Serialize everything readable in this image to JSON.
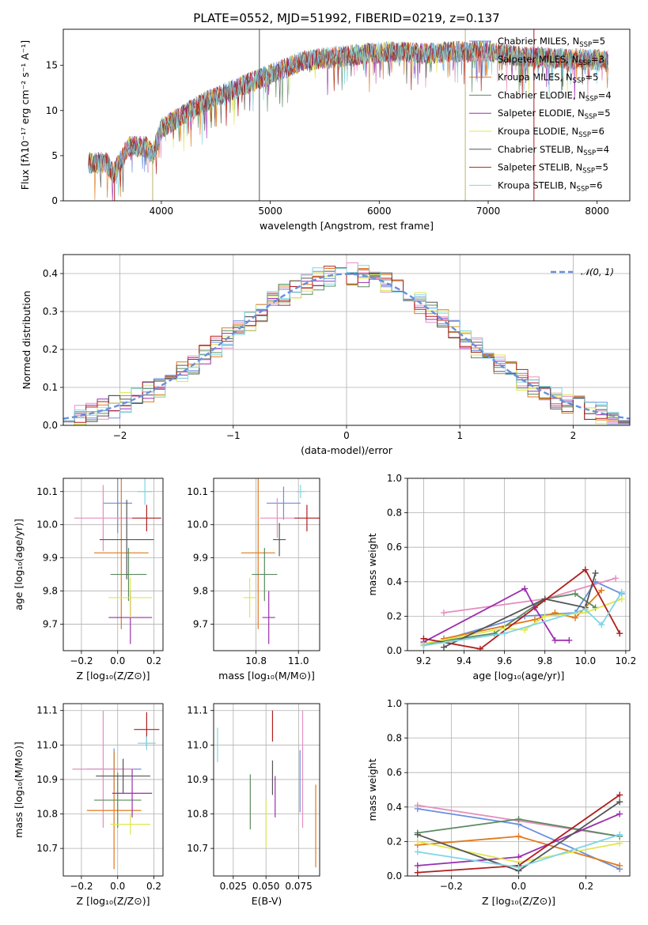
{
  "figure": {
    "title": "PLATE=0552, MJD=51992, FIBERID=0219, z=0.137"
  },
  "colors": {
    "Chabrier MILES": "#6a8fdc",
    "Salpeter MILES": "#e58fbf",
    "Kroupa MILES": "#e07a1c",
    "Chabrier ELODIE": "#5c8a60",
    "Salpeter ELODIE": "#9b2fae",
    "Kroupa ELODIE": "#dde84e",
    "Chabrier STELIB": "#555555",
    "Salpeter STELIB": "#b01e1e",
    "Kroupa STELIB": "#7fd6e4"
  },
  "chart_data": [
    {
      "id": "spectrum",
      "type": "line",
      "xlabel": "wavelength [Angstrom, rest frame]",
      "ylabel": "Flux [fλ10⁻¹⁷ erg cm⁻² s⁻¹ A⁻¹]",
      "xlim": [
        3100,
        8300
      ],
      "ylim": [
        0,
        19
      ],
      "xticks": [
        "4000",
        "5000",
        "6000",
        "7000",
        "8000"
      ],
      "yticks": [
        "0",
        "5",
        "10",
        "15"
      ],
      "legend_position": "top-right",
      "legend": [
        {
          "label": "Chabrier MILES, N",
          "sub": "SSP",
          "eq": "=5",
          "color": "#6a8fdc"
        },
        {
          "label": "Salpeter MILES, N",
          "sub": "SSP",
          "eq": "=3",
          "color": "#e58fbf"
        },
        {
          "label": "Kroupa MILES, N",
          "sub": "SSP",
          "eq": "=5",
          "color": "#e07a1c"
        },
        {
          "label": "Chabrier ELODIE, N",
          "sub": "SSP",
          "eq": "=4",
          "color": "#5c8a60"
        },
        {
          "label": "Salpeter ELODIE, N",
          "sub": "SSP",
          "eq": "=5",
          "color": "#9b2fae"
        },
        {
          "label": "Kroupa ELODIE, N",
          "sub": "SSP",
          "eq": "=6",
          "color": "#dde84e"
        },
        {
          "label": "Chabrier STELIB, N",
          "sub": "SSP",
          "eq": "=4",
          "color": "#555555"
        },
        {
          "label": "Salpeter STELIB, N",
          "sub": "SSP",
          "eq": "=5",
          "color": "#b01e1e"
        },
        {
          "label": "Kroupa STELIB, N",
          "sub": "SSP",
          "eq": "=6",
          "color": "#7fd6e4"
        }
      ],
      "continuum_points": [
        [
          3330,
          4.2
        ],
        [
          3500,
          4.2
        ],
        [
          3560,
          3.0
        ],
        [
          3700,
          6.0
        ],
        [
          3860,
          6.0
        ],
        [
          3920,
          5.0
        ],
        [
          4000,
          8.0
        ],
        [
          4200,
          9.5
        ],
        [
          4400,
          11.0
        ],
        [
          4600,
          12.0
        ],
        [
          4700,
          12.5
        ],
        [
          4800,
          13.0
        ],
        [
          4900,
          13.5
        ],
        [
          5100,
          14.5
        ],
        [
          5300,
          15.5
        ],
        [
          5500,
          15.8
        ],
        [
          5800,
          16.2
        ],
        [
          6100,
          16.5
        ],
        [
          6400,
          16.3
        ],
        [
          6700,
          16.5
        ],
        [
          7000,
          16.5
        ],
        [
          7300,
          16.0
        ],
        [
          7600,
          15.8
        ],
        [
          8000,
          15.6
        ],
        [
          8100,
          15.5
        ]
      ],
      "spikes": [
        [
          4900,
          19.5
        ],
        [
          6790,
          19.5
        ],
        [
          7420,
          19.5
        ]
      ]
    },
    {
      "id": "residuals",
      "type": "histogram",
      "xlabel": "(data-model)/error",
      "ylabel": "Normed distribution",
      "xlim": [
        -2.5,
        2.5
      ],
      "ylim": [
        0,
        0.45
      ],
      "xticks": [
        "−2",
        "−1",
        "0",
        "1",
        "2"
      ],
      "yticks": [
        "0.0",
        "0.1",
        "0.2",
        "0.3",
        "0.4"
      ],
      "legend_position": "top-right",
      "legend": [
        {
          "label": "𝒩(0, 1)",
          "color": "#6a8fdc"
        }
      ],
      "bin_width": 0.1,
      "gaussian": {
        "mean": 0,
        "sigma": 1
      }
    },
    {
      "id": "age_vs_Z",
      "type": "scatter",
      "xlabel": "Z [log₁₀(Z/Z⊙)]",
      "ylabel": "age  [log₁₀(age/yr)]",
      "xlim": [
        -0.3,
        0.25
      ],
      "ylim": [
        9.62,
        10.14
      ],
      "xticks": [
        "−0.2",
        "0.0",
        "0.2"
      ],
      "yticks": [
        "9.7",
        "9.8",
        "9.9",
        "10.0",
        "10.1"
      ],
      "points": [
        {
          "series": "Chabrier MILES",
          "x": 0.0,
          "y": 10.065,
          "xerr": 0.08,
          "yerr": 0.09
        },
        {
          "series": "Salpeter MILES",
          "x": -0.08,
          "y": 10.02,
          "xerr": 0.16,
          "yerr": 0.1
        },
        {
          "series": "Kroupa MILES",
          "x": 0.02,
          "y": 9.915,
          "xerr": 0.15,
          "yerr": 0.23
        },
        {
          "series": "Chabrier ELODIE",
          "x": 0.06,
          "y": 9.85,
          "xerr": 0.1,
          "yerr": 0.08
        },
        {
          "series": "Salpeter ELODIE",
          "x": 0.07,
          "y": 9.72,
          "xerr": 0.12,
          "yerr": 0.08
        },
        {
          "series": "Kroupa ELODIE",
          "x": 0.07,
          "y": 9.78,
          "xerr": 0.12,
          "yerr": 0.06
        },
        {
          "series": "Chabrier STELIB",
          "x": 0.05,
          "y": 9.955,
          "xerr": 0.15,
          "yerr": 0.12
        },
        {
          "series": "Salpeter STELIB",
          "x": 0.16,
          "y": 10.02,
          "xerr": 0.08,
          "yerr": 0.04
        },
        {
          "series": "Kroupa STELIB",
          "x": 0.15,
          "y": 10.1,
          "xerr": 0.04,
          "yerr": 0.04
        }
      ]
    },
    {
      "id": "age_vs_mass",
      "type": "scatter",
      "xlabel": "mass [log₁₀(M/M⊙)]",
      "ylabel": "",
      "xlim": [
        10.6,
        11.1
      ],
      "ylim": [
        9.62,
        10.14
      ],
      "xticks": [
        "10.8",
        "11.0"
      ],
      "yticks": [
        "9.7",
        "9.8",
        "9.9",
        "10.0",
        "10.1"
      ],
      "points": [
        {
          "series": "Chabrier MILES",
          "x": 10.93,
          "y": 10.065,
          "xerr": 0.08,
          "yerr": 0.05
        },
        {
          "series": "Salpeter MILES",
          "x": 10.9,
          "y": 10.02,
          "xerr": 0.08,
          "yerr": 0.06
        },
        {
          "series": "Kroupa MILES",
          "x": 10.81,
          "y": 9.915,
          "xerr": 0.08,
          "yerr": 0.23
        },
        {
          "series": "Chabrier ELODIE",
          "x": 10.84,
          "y": 9.85,
          "xerr": 0.06,
          "yerr": 0.08
        },
        {
          "series": "Salpeter ELODIE",
          "x": 10.86,
          "y": 9.72,
          "xerr": 0.03,
          "yerr": 0.08
        },
        {
          "series": "Kroupa ELODIE",
          "x": 10.77,
          "y": 9.78,
          "xerr": 0.03,
          "yerr": 0.06
        },
        {
          "series": "Chabrier STELIB",
          "x": 10.91,
          "y": 9.955,
          "xerr": 0.03,
          "yerr": 0.05
        },
        {
          "series": "Salpeter STELIB",
          "x": 11.04,
          "y": 10.02,
          "xerr": 0.06,
          "yerr": 0.04
        },
        {
          "series": "Kroupa STELIB",
          "x": 11.01,
          "y": 10.1,
          "xerr": 0.02,
          "yerr": 0.02
        }
      ]
    },
    {
      "id": "massweight_vs_age",
      "type": "line",
      "xlabel": "age  [log₁₀(age/yr)]",
      "ylabel": "mass weight",
      "xlim": [
        9.12,
        10.22
      ],
      "ylim": [
        0,
        1
      ],
      "xticks": [
        "9.2",
        "9.4",
        "9.6",
        "9.8",
        "10.0",
        "10.2"
      ],
      "yticks": [
        "0.0",
        "0.2",
        "0.4",
        "0.6",
        "0.8",
        "1.0"
      ],
      "series": [
        {
          "name": "Chabrier MILES",
          "points": [
            [
              9.2,
              0.03
            ],
            [
              9.7,
              0.2
            ],
            [
              9.95,
              0.22
            ],
            [
              10.05,
              0.4
            ],
            [
              10.18,
              0.33
            ]
          ]
        },
        {
          "name": "Salpeter MILES",
          "points": [
            [
              9.3,
              0.22
            ],
            [
              9.8,
              0.3
            ],
            [
              10.15,
              0.42
            ]
          ]
        },
        {
          "name": "Kroupa MILES",
          "points": [
            [
              9.3,
              0.07
            ],
            [
              9.75,
              0.18
            ],
            [
              9.85,
              0.22
            ],
            [
              9.95,
              0.19
            ],
            [
              10.08,
              0.35
            ]
          ]
        },
        {
          "name": "Chabrier ELODIE",
          "points": [
            [
              9.2,
              0.04
            ],
            [
              9.55,
              0.1
            ],
            [
              9.8,
              0.3
            ],
            [
              9.95,
              0.33
            ],
            [
              10.05,
              0.25
            ]
          ]
        },
        {
          "name": "Salpeter ELODIE",
          "points": [
            [
              9.2,
              0.05
            ],
            [
              9.7,
              0.36
            ],
            [
              9.75,
              0.25
            ],
            [
              9.85,
              0.06
            ],
            [
              9.92,
              0.06
            ]
          ]
        },
        {
          "name": "Kroupa ELODIE",
          "points": [
            [
              9.2,
              0.04
            ],
            [
              9.6,
              0.13
            ],
            [
              9.7,
              0.12
            ],
            [
              9.8,
              0.2
            ],
            [
              10.0,
              0.22
            ],
            [
              10.18,
              0.3
            ]
          ]
        },
        {
          "name": "Chabrier STELIB",
          "points": [
            [
              9.3,
              0.02
            ],
            [
              9.8,
              0.3
            ],
            [
              10.0,
              0.25
            ],
            [
              10.05,
              0.45
            ]
          ]
        },
        {
          "name": "Salpeter STELIB",
          "points": [
            [
              9.2,
              0.07
            ],
            [
              9.48,
              0.01
            ],
            [
              10.0,
              0.47
            ],
            [
              10.17,
              0.1
            ]
          ]
        },
        {
          "name": "Kroupa STELIB",
          "points": [
            [
              9.2,
              0.03
            ],
            [
              9.6,
              0.1
            ],
            [
              10.0,
              0.24
            ],
            [
              10.08,
              0.15
            ],
            [
              10.18,
              0.34
            ]
          ]
        }
      ]
    },
    {
      "id": "mass_vs_Z",
      "type": "scatter",
      "xlabel": "Z [log₁₀(Z/Z⊙)]",
      "ylabel": "mass [log₁₀(M/M⊙)]",
      "xlim": [
        -0.3,
        0.25
      ],
      "ylim": [
        10.62,
        11.12
      ],
      "xticks": [
        "−0.2",
        "0.0",
        "0.2"
      ],
      "yticks": [
        "10.7",
        "10.8",
        "10.9",
        "11.0",
        "11.1"
      ],
      "points": [
        {
          "series": "Chabrier MILES",
          "x": -0.02,
          "y": 10.93,
          "xerr": 0.15,
          "yerr": 0.06
        },
        {
          "series": "Salpeter MILES",
          "x": -0.08,
          "y": 10.93,
          "xerr": 0.17,
          "yerr": 0.17
        },
        {
          "series": "Kroupa MILES",
          "x": -0.02,
          "y": 10.81,
          "xerr": 0.15,
          "yerr": 0.17
        },
        {
          "series": "Chabrier ELODIE",
          "x": 0.0,
          "y": 10.84,
          "xerr": 0.13,
          "yerr": 0.08
        },
        {
          "series": "Salpeter ELODIE",
          "x": 0.08,
          "y": 10.86,
          "xerr": 0.11,
          "yerr": 0.07
        },
        {
          "series": "Kroupa ELODIE",
          "x": 0.07,
          "y": 10.77,
          "xerr": 0.11,
          "yerr": 0.03
        },
        {
          "series": "Chabrier STELIB",
          "x": 0.03,
          "y": 10.91,
          "xerr": 0.15,
          "yerr": 0.05
        },
        {
          "series": "Salpeter STELIB",
          "x": 0.16,
          "y": 11.045,
          "xerr": 0.07,
          "yerr": 0.05
        },
        {
          "series": "Kroupa STELIB",
          "x": 0.16,
          "y": 11.005,
          "xerr": 0.05,
          "yerr": 0.02
        }
      ]
    },
    {
      "id": "mass_vs_EBV",
      "type": "scatter",
      "xlabel": "E(B-V)",
      "ylabel": "",
      "xlim": [
        0.01,
        0.091
      ],
      "ylim": [
        10.62,
        11.12
      ],
      "xticks": [
        "0.025",
        "0.050",
        "0.075"
      ],
      "yticks": [
        "10.7",
        "10.8",
        "10.9",
        "11.0",
        "11.1"
      ],
      "points": [
        {
          "series": "Chabrier MILES",
          "x": 0.076,
          "y": 10.895,
          "xerr": 0,
          "yerr": 0.09
        },
        {
          "series": "Salpeter MILES",
          "x": 0.078,
          "y": 10.93,
          "xerr": 0,
          "yerr": 0.17
        },
        {
          "series": "Kroupa MILES",
          "x": 0.088,
          "y": 10.765,
          "xerr": 0,
          "yerr": 0.12
        },
        {
          "series": "Chabrier ELODIE",
          "x": 0.038,
          "y": 10.835,
          "xerr": 0,
          "yerr": 0.08
        },
        {
          "series": "Salpeter ELODIE",
          "x": 0.057,
          "y": 10.85,
          "xerr": 0,
          "yerr": 0.06
        },
        {
          "series": "Kroupa ELODIE",
          "x": 0.05,
          "y": 10.77,
          "xerr": 0,
          "yerr": 0.07
        },
        {
          "series": "Chabrier STELIB",
          "x": 0.055,
          "y": 10.905,
          "xerr": 0,
          "yerr": 0.05
        },
        {
          "series": "Salpeter STELIB",
          "x": 0.055,
          "y": 11.055,
          "xerr": 0,
          "yerr": 0.045
        },
        {
          "series": "Kroupa STELIB",
          "x": 0.013,
          "y": 11.0,
          "xerr": 0,
          "yerr": 0.05
        }
      ]
    },
    {
      "id": "massweight_vs_Z",
      "type": "line",
      "xlabel": "Z [log₁₀(Z/Z⊙)]",
      "ylabel": "mass weight",
      "xlim": [
        -0.33,
        0.33
      ],
      "ylim": [
        0,
        1
      ],
      "xticks": [
        "−0.2",
        "0.0",
        "0.2"
      ],
      "yticks": [
        "0.0",
        "0.2",
        "0.4",
        "0.6",
        "0.8",
        "1.0"
      ],
      "series": [
        {
          "name": "Chabrier MILES",
          "points": [
            [
              -0.3,
              0.39
            ],
            [
              0.0,
              0.3
            ],
            [
              0.3,
              0.04
            ]
          ]
        },
        {
          "name": "Salpeter MILES",
          "points": [
            [
              -0.3,
              0.41
            ],
            [
              0.0,
              0.32
            ],
            [
              0.3,
              0.23
            ]
          ]
        },
        {
          "name": "Kroupa MILES",
          "points": [
            [
              -0.3,
              0.18
            ],
            [
              0.0,
              0.23
            ],
            [
              0.3,
              0.06
            ]
          ]
        },
        {
          "name": "Chabrier ELODIE",
          "points": [
            [
              -0.3,
              0.25
            ],
            [
              0.0,
              0.33
            ],
            [
              0.3,
              0.23
            ]
          ]
        },
        {
          "name": "Salpeter ELODIE",
          "points": [
            [
              -0.3,
              0.06
            ],
            [
              0.0,
              0.11
            ],
            [
              0.3,
              0.36
            ]
          ]
        },
        {
          "name": "Kroupa ELODIE",
          "points": [
            [
              -0.3,
              0.2
            ],
            [
              0.0,
              0.08
            ],
            [
              0.3,
              0.19
            ]
          ]
        },
        {
          "name": "Chabrier STELIB",
          "points": [
            [
              -0.3,
              0.24
            ],
            [
              0.0,
              0.03
            ],
            [
              0.3,
              0.43
            ]
          ]
        },
        {
          "name": "Salpeter STELIB",
          "points": [
            [
              -0.3,
              0.02
            ],
            [
              0.0,
              0.06
            ],
            [
              0.3,
              0.47
            ]
          ]
        },
        {
          "name": "Kroupa STELIB",
          "points": [
            [
              -0.3,
              0.14
            ],
            [
              0.0,
              0.05
            ],
            [
              0.3,
              0.24
            ]
          ]
        }
      ]
    }
  ]
}
